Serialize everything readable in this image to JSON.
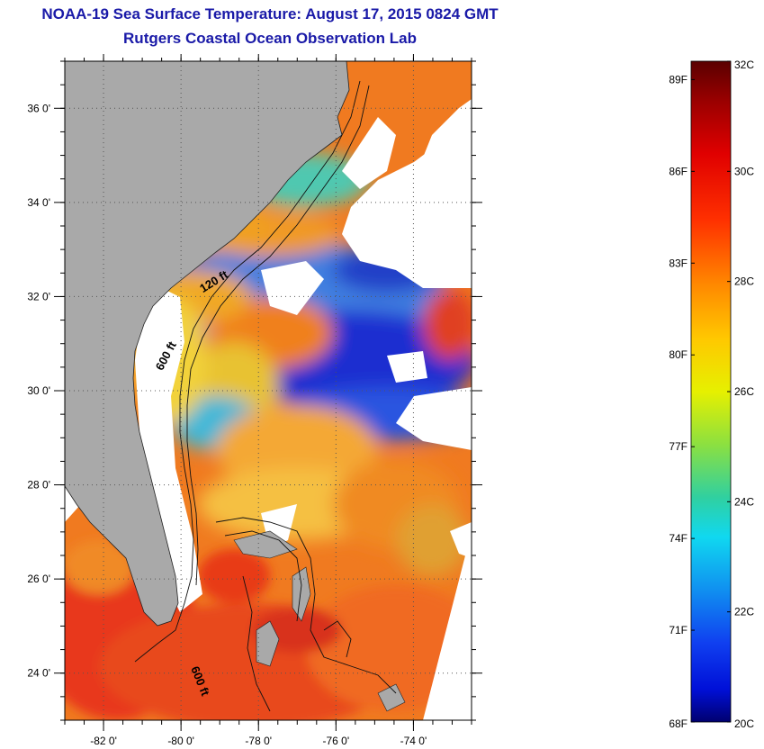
{
  "header": {
    "title": "NOAA-19 Sea Surface Temperature:  August 17, 2015 0824 GMT",
    "subtitle": "Rutgers Coastal Ocean Observation Lab"
  },
  "map": {
    "lon_range": [
      -83,
      -72.5
    ],
    "lat_range": [
      23,
      37
    ],
    "lon_ticks": [
      {
        "value": -82,
        "label": "-82 0'"
      },
      {
        "value": -80,
        "label": "-80 0'"
      },
      {
        "value": -78,
        "label": "-78 0'"
      },
      {
        "value": -76,
        "label": "-76 0'"
      },
      {
        "value": -74,
        "label": "-74 0'"
      }
    ],
    "lat_ticks": [
      {
        "value": 36,
        "label": "36 0'"
      },
      {
        "value": 34,
        "label": "34 0'"
      },
      {
        "value": 32,
        "label": "32 0'"
      },
      {
        "value": 30,
        "label": "30 0'"
      },
      {
        "value": 28,
        "label": "28 0'"
      },
      {
        "value": 26,
        "label": "26 0'"
      },
      {
        "value": 24,
        "label": "24 0'"
      }
    ],
    "contour_labels": [
      {
        "text": "120 ft",
        "lon": -79.1,
        "lat": 32.25,
        "angle": -32
      },
      {
        "text": "600 ft",
        "lon": -80.3,
        "lat": 30.7,
        "angle": -62
      },
      {
        "text": "600 ft",
        "lon": -79.6,
        "lat": 23.8,
        "angle": 68
      }
    ],
    "colors": {
      "land": "#a9a9a9",
      "no_data": "#ffffff",
      "grid": "#555555"
    }
  },
  "colorbar": {
    "min_c": 20,
    "max_c": 32,
    "celsius_labels": [
      {
        "value": 32,
        "label": "32C"
      },
      {
        "value": 30,
        "label": "30C"
      },
      {
        "value": 28,
        "label": "28C"
      },
      {
        "value": 26,
        "label": "26C"
      },
      {
        "value": 24,
        "label": "24C"
      },
      {
        "value": 22,
        "label": "22C"
      },
      {
        "value": 20,
        "label": "20C"
      }
    ],
    "fahrenheit_labels": [
      {
        "value": 89,
        "label": "89F"
      },
      {
        "value": 86,
        "label": "86F"
      },
      {
        "value": 83,
        "label": "83F"
      },
      {
        "value": 80,
        "label": "80F"
      },
      {
        "value": 77,
        "label": "77F"
      },
      {
        "value": 74,
        "label": "74F"
      },
      {
        "value": 71,
        "label": "71F"
      },
      {
        "value": 68,
        "label": "68F"
      }
    ]
  }
}
